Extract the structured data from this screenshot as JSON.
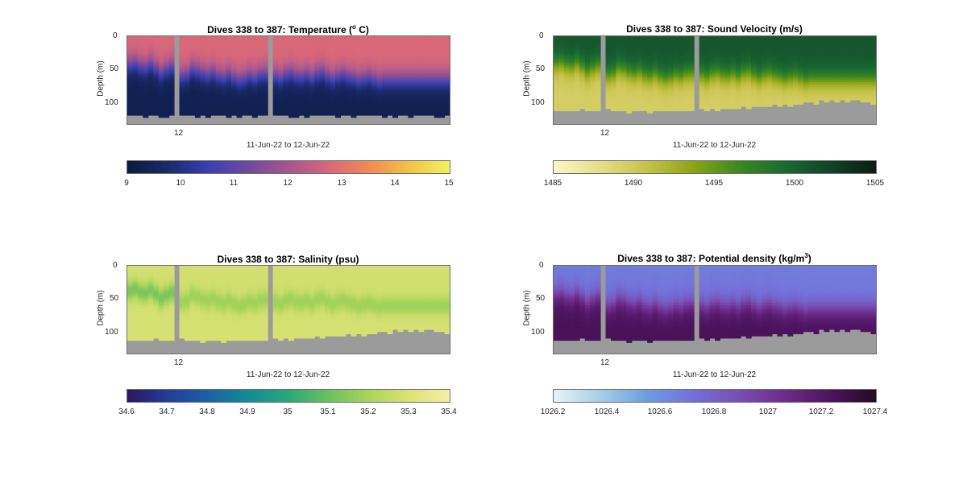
{
  "chart_data": [
    {
      "type": "heatmap",
      "title": "Dives 338 to 387: Temperature (",
      "title_sup": "o",
      "title_end": " C)",
      "ylabel": "Depth (m)",
      "xlabel": "11-Jun-22 to 12-Jun-22",
      "x_tick_labels": [
        "12"
      ],
      "y_tick_labels": [
        "0",
        "50",
        "100"
      ],
      "ylim": [
        0,
        133
      ],
      "y_ticks": [
        0,
        50,
        100
      ],
      "colorbar": {
        "range": [
          9,
          15
        ],
        "tick_labels": [
          "9",
          "10",
          "11",
          "12",
          "13",
          "14",
          "15"
        ],
        "ticks": [
          9,
          10,
          11,
          12,
          13,
          14,
          15
        ],
        "colors": [
          "#0a1a3f",
          "#1b2a6b",
          "#3a3fb0",
          "#7049a0",
          "#a65590",
          "#d8677a",
          "#f08a55",
          "#f5c048",
          "#f2f25e"
        ]
      },
      "field_description": "warm upper layer (~12.8 C) over cold deep layer (~9.3 C), thermocline ~45-70 m",
      "surface_value": 12.8,
      "deep_value": 9.3,
      "mixed_layer_depth_m": [
        43,
        41,
        45,
        47,
        42,
        48,
        55,
        50,
        46,
        52,
        60,
        58,
        50,
        52,
        56,
        58,
        55,
        60,
        62,
        58,
        63,
        66,
        64,
        60,
        62,
        58,
        57,
        55,
        60,
        63,
        58,
        56,
        60,
        61,
        58,
        62,
        57,
        55,
        60,
        64,
        60,
        58,
        61,
        63,
        66,
        64,
        62,
        65,
        68,
        66
      ]
    },
    {
      "type": "heatmap",
      "title": "Dives 338 to 387: Sound Velocity (m/s)",
      "ylabel": "Depth (m)",
      "xlabel": "11-Jun-22 to 12-Jun-22",
      "x_tick_labels": [
        "12"
      ],
      "y_tick_labels": [
        "0",
        "50",
        "100"
      ],
      "ylim": [
        0,
        133
      ],
      "y_ticks": [
        0,
        50,
        100
      ],
      "colorbar": {
        "range": [
          1485,
          1505
        ],
        "tick_labels": [
          "1485",
          "1490",
          "1495",
          "1500",
          "1505"
        ],
        "ticks": [
          1485,
          1490,
          1495,
          1500,
          1505
        ],
        "colors": [
          "#fbf5c8",
          "#e6dd88",
          "#c7c24a",
          "#8ea516",
          "#3d8a1f",
          "#1b6b32",
          "#11432a",
          "#0c1c14"
        ]
      },
      "surface_value": 1500.8,
      "deep_value": 1489.5
    },
    {
      "type": "heatmap",
      "title": "Dives 338 to 387: Salinity (psu)",
      "ylabel": "Depth (m)",
      "xlabel": "11-Jun-22 to 12-Jun-22",
      "x_tick_labels": [
        "12"
      ],
      "y_tick_labels": [
        "0",
        "50",
        "100"
      ],
      "ylim": [
        0,
        133
      ],
      "y_ticks": [
        0,
        50,
        100
      ],
      "colorbar": {
        "range": [
          34.6,
          35.4
        ],
        "tick_labels": [
          "34.6",
          "34.7",
          "34.8",
          "34.9",
          "35",
          "35.1",
          "35.2",
          "35.3",
          "35.4"
        ],
        "ticks": [
          34.6,
          34.7,
          34.8,
          34.9,
          35,
          35.1,
          35.2,
          35.3,
          35.4
        ],
        "colors": [
          "#2a1862",
          "#233d98",
          "#1a62a4",
          "#158a98",
          "#2ca67b",
          "#6bc15f",
          "#a9d45a",
          "#dbe276",
          "#f5eea2"
        ]
      },
      "surface_value": 35.28,
      "mid_value": 35.18,
      "deep_value": 35.3
    },
    {
      "type": "heatmap",
      "title": "Dives 338 to 387: Potential density (kg/m",
      "title_sup": "3",
      "title_end": ")",
      "ylabel": "Depth (m)",
      "xlabel": "11-Jun-22 to 12-Jun-22",
      "x_tick_labels": [
        "12"
      ],
      "y_tick_labels": [
        "0",
        "50",
        "100"
      ],
      "ylim": [
        0,
        133
      ],
      "y_ticks": [
        0,
        50,
        100
      ],
      "colorbar": {
        "range": [
          1026.2,
          1027.4
        ],
        "tick_labels": [
          "1026.2",
          "1026.4",
          "1026.6",
          "1026.8",
          "1027",
          "1027.2",
          "1027.4"
        ],
        "ticks": [
          1026.2,
          1026.4,
          1026.6,
          1026.8,
          1027,
          1027.2,
          1027.4
        ],
        "colors": [
          "#e6f3f5",
          "#a6cfe6",
          "#6d9fe0",
          "#7371da",
          "#7850b4",
          "#6e2c8c",
          "#4e1460",
          "#250a22"
        ]
      },
      "surface_value": 1026.68,
      "deep_value": 1027.25
    }
  ],
  "gap_columns": [
    9,
    27
  ],
  "bottom_depth_m": [
    121,
    120,
    121,
    122,
    121,
    121,
    122,
    123,
    121,
    0,
    120,
    121,
    121,
    122,
    121,
    122,
    121,
    121,
    121,
    122,
    121,
    122,
    121,
    121,
    122,
    121,
    121,
    0,
    121,
    120,
    121,
    122,
    122,
    121,
    122,
    121,
    121,
    120,
    121,
    121,
    122,
    121,
    121,
    122,
    121,
    121,
    120,
    121,
    121,
    122,
    121,
    122,
    121,
    121,
    122,
    121,
    120,
    121,
    121,
    122,
    123,
    121
  ],
  "profile_bottom_depth_m": [
    112,
    113,
    112,
    114,
    113,
    110,
    114,
    112,
    113,
    0,
    110,
    112,
    113,
    114,
    115,
    113,
    112,
    113,
    115,
    114,
    113,
    112,
    114,
    113,
    112,
    113,
    114,
    0,
    110,
    112,
    111,
    112,
    110,
    111,
    110,
    109,
    108,
    110,
    108,
    106,
    105,
    108,
    104,
    107,
    103,
    105,
    102,
    104,
    101,
    100,
    103,
    98,
    100,
    97,
    99,
    96,
    100,
    98,
    97,
    101,
    99,
    102
  ]
}
